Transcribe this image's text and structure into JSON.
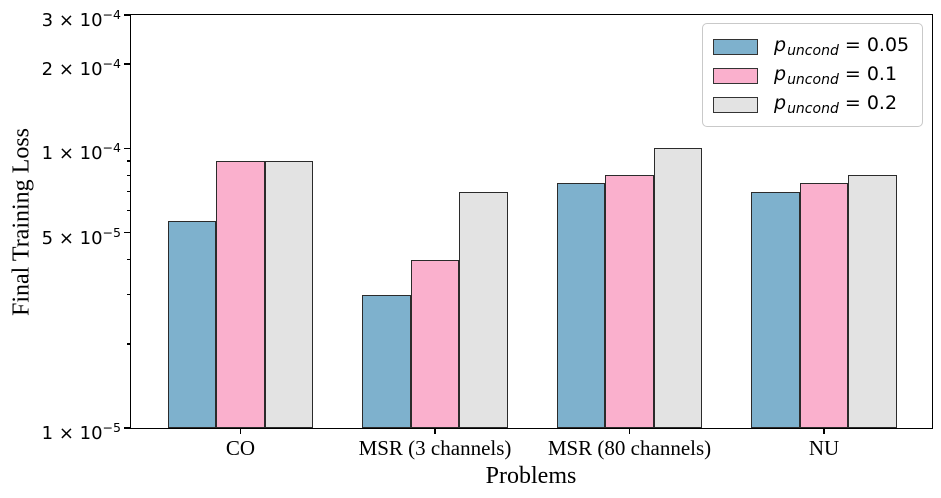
{
  "figure": {
    "background": "#ffffff",
    "spine_color": "#000000"
  },
  "chart_data": {
    "type": "bar",
    "title": "",
    "xlabel": "Problems",
    "ylabel": "Final Training Loss",
    "yscale": "log",
    "ylim": [
      1e-05,
      0.0003
    ],
    "grid": false,
    "legend_position": "upper right",
    "categories": [
      "CO",
      "MSR (3 channels)",
      "MSR (80 channels)",
      "NU"
    ],
    "series": [
      {
        "name": "p_uncond = 0.05",
        "legend": {
          "variable": "p",
          "subscript": "uncond",
          "value": "0.05"
        },
        "color": "#7eb1cd",
        "edge_color": "#2b2b2b",
        "values": [
          5.5e-05,
          3e-05,
          7.5e-05,
          7e-05
        ]
      },
      {
        "name": "p_uncond = 0.1",
        "legend": {
          "variable": "p",
          "subscript": "uncond",
          "value": "0.1"
        },
        "color": "#fab0cd",
        "edge_color": "#2b2b2b",
        "values": [
          9e-05,
          4e-05,
          8e-05,
          7.5e-05
        ]
      },
      {
        "name": "p_uncond = 0.2",
        "legend": {
          "variable": "p",
          "subscript": "uncond",
          "value": "0.2"
        },
        "color": "#e3e3e3",
        "edge_color": "#2b2b2b",
        "values": [
          9e-05,
          7e-05,
          0.0001,
          8e-05
        ]
      }
    ],
    "y_ticks": [
      {
        "text": "3 × 10⁻⁴",
        "mantissa": "3",
        "exponent": "−4",
        "value": 0.0003
      },
      {
        "text": "2 × 10⁻⁴",
        "mantissa": "2",
        "exponent": "−4",
        "value": 0.0002
      },
      {
        "text": "1 × 10⁻⁴",
        "mantissa": "1",
        "exponent": "−4",
        "value": 0.0001
      },
      {
        "text": "5 × 10⁻⁵",
        "mantissa": "5",
        "exponent": "−5",
        "value": 5e-05
      },
      {
        "text": "1 × 10⁻⁵",
        "mantissa": "1",
        "exponent": "−5",
        "value": 1e-05
      }
    ]
  }
}
